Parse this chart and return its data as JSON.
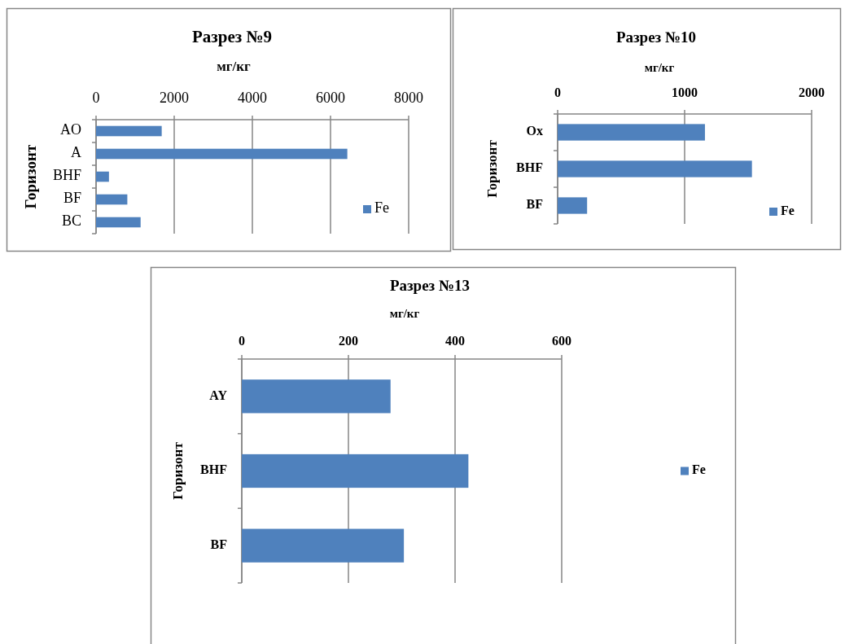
{
  "chart_data": [
    {
      "type": "bar",
      "orientation": "horizontal",
      "title": "Разрез №9",
      "xlabel": "мг/кг",
      "ylabel": "Горизонт",
      "categories": [
        "AO",
        "A",
        "BHF",
        "BF",
        "BC"
      ],
      "series": [
        {
          "name": "Fe",
          "color": "#4f81bd",
          "values": [
            1680,
            6430,
            330,
            800,
            1140
          ]
        }
      ],
      "xlim": [
        0,
        8000
      ],
      "xticks": [
        0,
        2000,
        4000,
        6000,
        8000
      ],
      "grid": "x",
      "legend": "right"
    },
    {
      "type": "bar",
      "orientation": "horizontal",
      "title": "Разрез №10",
      "xlabel": "мг/кг",
      "ylabel": "Горизонт",
      "categories": [
        "Ox",
        "BHF",
        "BF"
      ],
      "series": [
        {
          "name": "Fe",
          "color": "#4f81bd",
          "values": [
            1160,
            1530,
            232
          ]
        }
      ],
      "xlim": [
        0,
        2000
      ],
      "xticks": [
        0,
        1000,
        2000
      ],
      "grid": "x",
      "legend": "bottom right"
    },
    {
      "type": "bar",
      "orientation": "horizontal",
      "title": "Разрез №13",
      "xlabel": "мг/кг",
      "ylabel": "Горизонт",
      "categories": [
        "AY",
        "BHF",
        "BF"
      ],
      "series": [
        {
          "name": "Fe",
          "color": "#4f81bd",
          "values": [
            279,
            425,
            304
          ]
        }
      ],
      "xlim": [
        0,
        600
      ],
      "xticks": [
        0,
        200,
        400,
        600
      ],
      "grid": "x",
      "legend": "right"
    }
  ]
}
